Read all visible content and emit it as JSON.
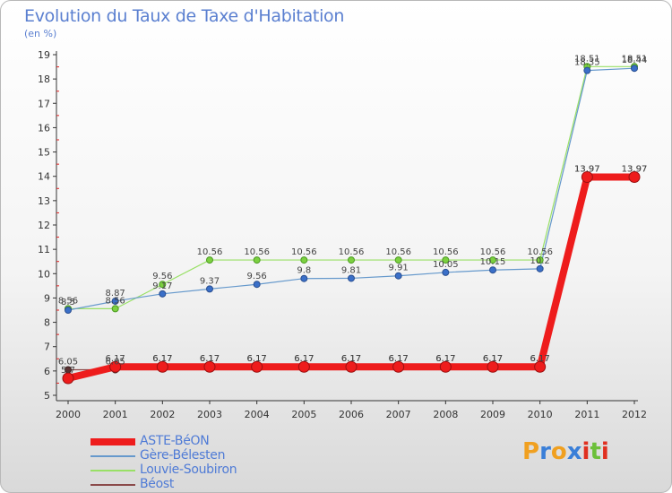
{
  "title": "Evolution du Taux de Taxe d'Habitation",
  "subtitle": "(en %)",
  "logo": {
    "letters": [
      "P",
      "r",
      "o",
      "x",
      "i",
      "t",
      "i"
    ],
    "colors": [
      "#f0a020",
      "#3a7fd8",
      "#f0a020",
      "#3a7fd8",
      "#e03020",
      "#6cc03a",
      "#e03020"
    ]
  },
  "chart_data": {
    "type": "line",
    "x": [
      "2000",
      "2001",
      "2002",
      "2003",
      "2004",
      "2005",
      "2006",
      "2007",
      "2008",
      "2009",
      "2010",
      "2011",
      "2012"
    ],
    "ylim": [
      5,
      19
    ],
    "yticks": [
      "5",
      "6",
      "7",
      "8",
      "9",
      "10",
      "11",
      "12",
      "13",
      "14",
      "15",
      "16",
      "17",
      "18",
      "19"
    ],
    "grid": false,
    "legend_position": "bottom-left",
    "series": [
      {
        "name": "ASTE-BéON",
        "color": "#ee1c1c",
        "values": [
          5.7,
          6.17,
          6.17,
          6.17,
          6.17,
          6.17,
          6.17,
          6.17,
          6.17,
          6.17,
          6.17,
          13.97,
          13.97
        ],
        "labels": [
          "5.7",
          "6.17",
          "6.17",
          "6.17",
          "6.17",
          "6.17",
          "6.17",
          "6.17",
          "6.17",
          "6.17",
          "6.17",
          "13.97",
          "13.97"
        ]
      },
      {
        "name": "Gère-Bélesten",
        "color": "#6699cc",
        "values": [
          8.5,
          8.87,
          9.17,
          9.37,
          9.56,
          9.8,
          9.81,
          9.91,
          10.05,
          10.15,
          10.2,
          18.35,
          18.44
        ],
        "labels": [
          "8.5",
          "8.87",
          "9.17",
          "9.37",
          "9.56",
          "9.8",
          "9.81",
          "9.91",
          "10.05",
          "10.15",
          "10.2",
          "18.35",
          "18.44"
        ]
      },
      {
        "name": "Louvie-Soubiron",
        "color": "#99e066",
        "values": [
          8.56,
          8.56,
          9.56,
          10.56,
          10.56,
          10.56,
          10.56,
          10.56,
          10.56,
          10.56,
          10.56,
          18.51,
          18.51
        ],
        "labels": [
          "8.56",
          "8.56",
          "9.56",
          "10.56",
          "10.56",
          "10.56",
          "10.56",
          "10.56",
          "10.56",
          "10.56",
          "10.56",
          "18.51",
          "18.51"
        ]
      },
      {
        "name": "Béost",
        "color": "#8b4a4a",
        "values": [
          6.05,
          6.05,
          6.17,
          6.17,
          6.17,
          6.17,
          6.17,
          6.17,
          6.17,
          6.17,
          6.17,
          13.97,
          13.97
        ],
        "labels": [
          "6.05",
          "6.05",
          "6.17",
          "6.17",
          "6.17",
          "6.17",
          "6.17",
          "6.17",
          "6.17",
          "6.17",
          "6.17",
          "13.97",
          "13.97"
        ]
      }
    ]
  }
}
